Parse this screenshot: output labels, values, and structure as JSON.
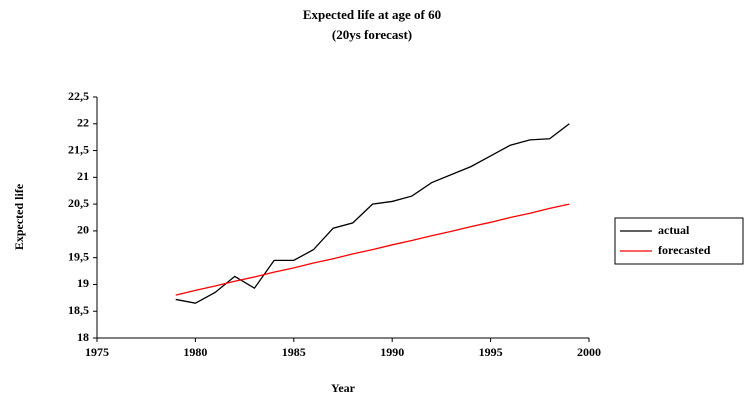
{
  "chart_data": {
    "type": "line",
    "title": "Expected life at age of 60",
    "subtitle": "(20ys forecast)",
    "x_label": "Year",
    "y_label": "Expected life",
    "x": [
      1979,
      1980,
      1981,
      1982,
      1983,
      1984,
      1985,
      1986,
      1987,
      1988,
      1989,
      1990,
      1991,
      1992,
      1993,
      1994,
      1995,
      1996,
      1997,
      1998,
      1999
    ],
    "series": [
      {
        "name": "actual",
        "color": "#000000",
        "values": [
          18.72,
          18.65,
          18.85,
          19.15,
          18.93,
          19.45,
          19.45,
          19.65,
          20.05,
          20.15,
          20.5,
          20.55,
          20.65,
          20.9,
          21.05,
          21.2,
          21.4,
          21.6,
          21.7,
          21.72,
          22.0
        ]
      },
      {
        "name": "forecasted",
        "color": "#ff0000",
        "values": [
          18.8,
          18.89,
          18.97,
          19.06,
          19.14,
          19.23,
          19.31,
          19.4,
          19.48,
          19.57,
          19.65,
          19.74,
          19.82,
          19.91,
          19.99,
          20.08,
          20.16,
          20.25,
          20.33,
          20.42,
          20.5
        ]
      }
    ],
    "xlim": [
      1975,
      2000
    ],
    "xticks": [
      1975,
      1980,
      1985,
      1990,
      1995,
      2000
    ],
    "ylim": [
      18,
      22.5
    ],
    "yticks": [
      18,
      {
        "value": 18.5,
        "label": "18,5"
      },
      19,
      {
        "value": 19.5,
        "label": "19,5"
      },
      20,
      {
        "value": 20.5,
        "label": "20,5"
      },
      21,
      {
        "value": 21.5,
        "label": "21,5"
      },
      22,
      {
        "value": 22.5,
        "label": "22,5"
      }
    ],
    "grid": false,
    "legend": "right"
  }
}
